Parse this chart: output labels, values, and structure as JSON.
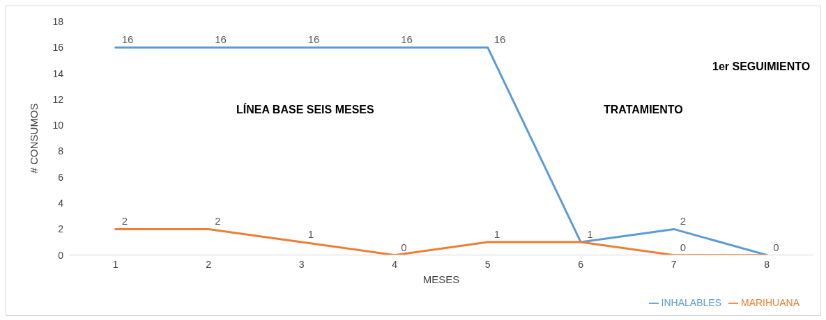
{
  "chart_data": {
    "type": "line",
    "xlabel": "MESES",
    "ylabel": "# CONSUMOS",
    "categories": [
      "1",
      "2",
      "3",
      "4",
      "5",
      "6",
      "7",
      "8"
    ],
    "series": [
      {
        "name": "INHALABLES",
        "color": "#5b9bd5",
        "values": [
          16,
          16,
          16,
          16,
          16,
          1,
          2,
          0
        ],
        "value_labels": [
          "16",
          "16",
          "16",
          "16",
          "16",
          "1",
          "2",
          "0"
        ]
      },
      {
        "name": "MARIHUANA",
        "color": "#ed7d31",
        "values": [
          2,
          2,
          1,
          0,
          1,
          1,
          0,
          0
        ],
        "value_labels": [
          "2",
          "2",
          "1",
          "0",
          "1",
          null,
          "0",
          null
        ]
      }
    ],
    "ylim": [
      0,
      18
    ],
    "yticks": [
      0,
      2,
      4,
      6,
      8,
      10,
      12,
      14,
      16,
      18
    ],
    "grid": false,
    "legend": "bottom right",
    "marker": "none",
    "line_style": "solid",
    "annotations": [
      "LÍNEA BASE SEIS MESES",
      "TRATAMIENTO",
      "1er SEGUIMIENTO"
    ]
  }
}
